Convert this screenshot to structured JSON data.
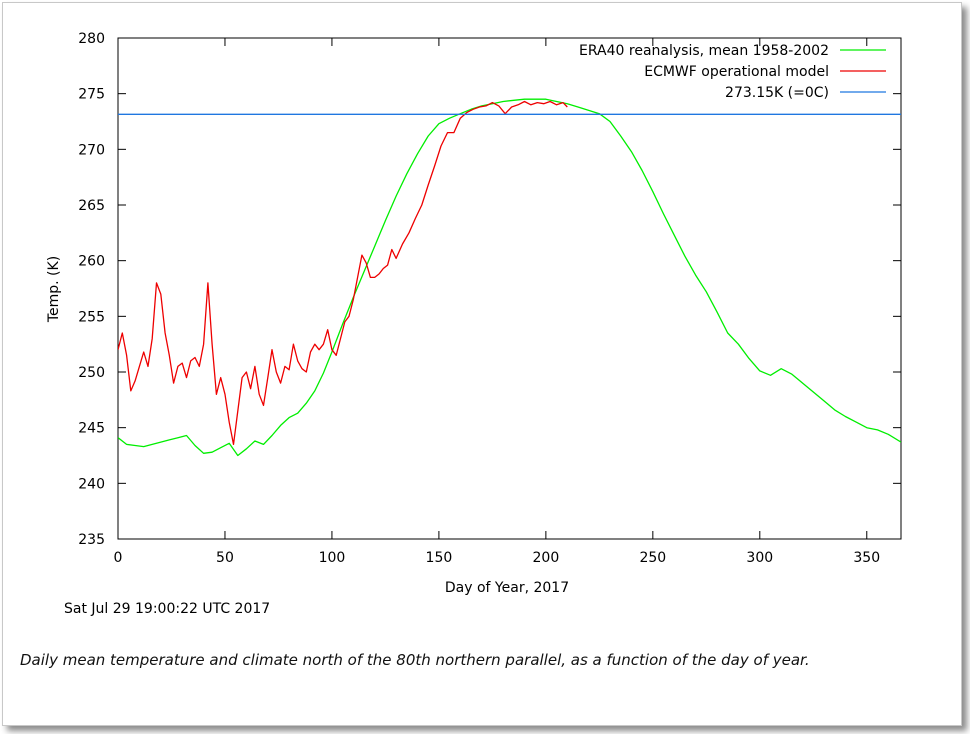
{
  "caption": "Daily mean temperature and climate north of the 80th northern parallel, as a function of the day of year.",
  "timestamp": "Sat Jul 29 19:00:22 UTC 2017",
  "chart_data": {
    "type": "line",
    "xlabel": "Day of Year, 2017",
    "ylabel": "Temp. (K)",
    "xlim": [
      0,
      366
    ],
    "ylim": [
      235,
      280
    ],
    "xticks": [
      0,
      50,
      100,
      150,
      200,
      250,
      300,
      350
    ],
    "yticks": [
      235,
      240,
      245,
      250,
      255,
      260,
      265,
      270,
      275,
      280
    ],
    "legend_position": "top-right",
    "grid": false,
    "series": [
      {
        "name": "ERA40 reanalysis, mean 1958-2002",
        "color": "#00ee00",
        "x": [
          0,
          4,
          8,
          12,
          16,
          20,
          24,
          28,
          32,
          36,
          40,
          44,
          48,
          52,
          56,
          60,
          64,
          68,
          72,
          76,
          80,
          84,
          88,
          92,
          96,
          100,
          105,
          110,
          115,
          120,
          125,
          130,
          135,
          140,
          145,
          150,
          155,
          160,
          165,
          170,
          175,
          180,
          185,
          190,
          195,
          200,
          205,
          210,
          215,
          220,
          225,
          230,
          235,
          240,
          245,
          250,
          255,
          260,
          265,
          270,
          275,
          280,
          285,
          290,
          295,
          300,
          305,
          310,
          315,
          320,
          325,
          330,
          335,
          340,
          345,
          350,
          355,
          360,
          366
        ],
        "values": [
          244.1,
          243.5,
          243.4,
          243.3,
          243.5,
          243.7,
          243.9,
          244.1,
          244.3,
          243.4,
          242.7,
          242.8,
          243.2,
          243.6,
          242.5,
          243.1,
          243.8,
          243.5,
          244.3,
          245.2,
          245.9,
          246.3,
          247.2,
          248.3,
          249.9,
          251.8,
          254.3,
          256.7,
          259.0,
          261.3,
          263.6,
          265.8,
          267.8,
          269.6,
          271.2,
          272.3,
          272.8,
          273.2,
          273.6,
          273.9,
          274.1,
          274.3,
          274.4,
          274.5,
          274.5,
          274.5,
          274.3,
          274.1,
          273.8,
          273.5,
          273.2,
          272.5,
          271.2,
          269.8,
          268.1,
          266.2,
          264.2,
          262.3,
          260.4,
          258.7,
          257.2,
          255.4,
          253.5,
          252.5,
          251.2,
          250.1,
          249.7,
          250.3,
          249.8,
          249.0,
          248.2,
          247.4,
          246.6,
          246.0,
          245.5,
          245.0,
          244.8,
          244.4,
          243.7
        ]
      },
      {
        "name": "ECMWF operational model",
        "color": "#ee0000",
        "x": [
          0,
          2,
          4,
          6,
          8,
          10,
          12,
          14,
          16,
          18,
          20,
          22,
          24,
          26,
          28,
          30,
          32,
          34,
          36,
          38,
          40,
          42,
          44,
          46,
          48,
          50,
          52,
          54,
          56,
          58,
          60,
          62,
          64,
          66,
          68,
          70,
          72,
          74,
          76,
          78,
          80,
          82,
          84,
          86,
          88,
          90,
          92,
          94,
          96,
          98,
          100,
          102,
          104,
          106,
          108,
          110,
          112,
          114,
          116,
          118,
          120,
          122,
          124,
          126,
          128,
          130,
          133,
          136,
          139,
          142,
          145,
          148,
          151,
          154,
          157,
          160,
          163,
          166,
          169,
          172,
          175,
          178,
          181,
          184,
          187,
          190,
          193,
          196,
          199,
          202,
          205,
          208,
          210
        ],
        "values": [
          252.0,
          253.5,
          251.5,
          248.3,
          249.2,
          250.5,
          251.8,
          250.5,
          253.0,
          258.0,
          257.0,
          253.5,
          251.5,
          249.0,
          250.5,
          250.8,
          249.5,
          251.0,
          251.3,
          250.5,
          252.5,
          258.0,
          252.5,
          248.0,
          249.5,
          248.0,
          245.5,
          243.5,
          246.5,
          249.5,
          250.0,
          248.5,
          250.5,
          248.0,
          247.0,
          249.5,
          252.0,
          250.0,
          249.0,
          250.5,
          250.2,
          252.5,
          251.0,
          250.3,
          250.0,
          251.8,
          252.5,
          252.0,
          252.5,
          253.8,
          252.0,
          251.5,
          253.0,
          254.5,
          255.0,
          256.5,
          258.5,
          260.5,
          259.8,
          258.5,
          258.5,
          258.8,
          259.3,
          259.6,
          261.0,
          260.2,
          261.5,
          262.5,
          263.8,
          265.0,
          266.8,
          268.5,
          270.3,
          271.5,
          271.5,
          272.8,
          273.3,
          273.6,
          273.8,
          273.9,
          274.2,
          273.9,
          273.2,
          273.8,
          274.0,
          274.3,
          274.0,
          274.2,
          274.1,
          274.3,
          274.0,
          274.2,
          273.8
        ]
      },
      {
        "name": "273.15K (=0C)",
        "color": "#1f77e0",
        "x": [
          0,
          366
        ],
        "values": [
          273.15,
          273.15
        ]
      }
    ]
  }
}
